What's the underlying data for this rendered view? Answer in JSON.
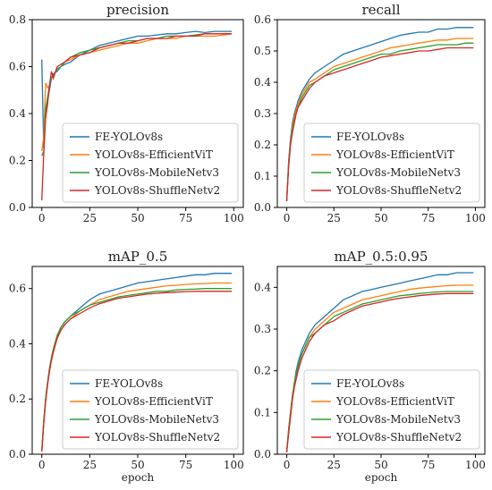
{
  "chart_data": [
    {
      "type": "line",
      "title": "precision",
      "xlabel": "",
      "ylabel": "",
      "xlim": [
        -5,
        105
      ],
      "ylim": [
        0,
        0.8
      ],
      "xticks": [
        0,
        25,
        50,
        75,
        100
      ],
      "yticks": [
        0.0,
        0.2,
        0.4,
        0.6,
        0.8
      ],
      "tick_decimals": 1,
      "legend_position": "lower-right",
      "grid": false,
      "series": [
        {
          "name": "FE-YOLOv8s",
          "color": "#1f77b4",
          "x": [
            0,
            1,
            2,
            3,
            4,
            5,
            6,
            8,
            10,
            12,
            15,
            20,
            25,
            30,
            35,
            40,
            45,
            50,
            55,
            60,
            65,
            70,
            75,
            80,
            85,
            90,
            95,
            99
          ],
          "y": [
            0.63,
            0.25,
            0.4,
            0.46,
            0.5,
            0.55,
            0.57,
            0.58,
            0.6,
            0.61,
            0.62,
            0.65,
            0.67,
            0.69,
            0.7,
            0.71,
            0.72,
            0.73,
            0.73,
            0.735,
            0.74,
            0.74,
            0.745,
            0.75,
            0.745,
            0.75,
            0.75,
            0.75
          ]
        },
        {
          "name": "YOLOv8s-EfficientViT",
          "color": "#ff7f0e",
          "x": [
            0,
            1,
            2,
            3,
            4,
            5,
            6,
            8,
            10,
            12,
            15,
            20,
            25,
            30,
            35,
            40,
            45,
            50,
            55,
            60,
            65,
            70,
            75,
            80,
            85,
            90,
            95,
            99
          ],
          "y": [
            0.24,
            0.3,
            0.53,
            0.51,
            0.52,
            0.55,
            0.56,
            0.59,
            0.6,
            0.62,
            0.63,
            0.65,
            0.66,
            0.67,
            0.68,
            0.69,
            0.7,
            0.7,
            0.71,
            0.72,
            0.72,
            0.72,
            0.73,
            0.73,
            0.73,
            0.73,
            0.735,
            0.74
          ]
        },
        {
          "name": "YOLOv8s-MobileNetv3",
          "color": "#2ca02c",
          "x": [
            0,
            1,
            2,
            3,
            4,
            5,
            6,
            8,
            10,
            12,
            15,
            20,
            25,
            30,
            35,
            40,
            45,
            50,
            55,
            60,
            65,
            70,
            75,
            80,
            85,
            90,
            95,
            99
          ],
          "y": [
            0.22,
            0.24,
            0.42,
            0.47,
            0.52,
            0.55,
            0.56,
            0.59,
            0.6,
            0.62,
            0.64,
            0.66,
            0.67,
            0.68,
            0.69,
            0.7,
            0.71,
            0.71,
            0.72,
            0.72,
            0.73,
            0.73,
            0.73,
            0.735,
            0.74,
            0.74,
            0.74,
            0.74
          ]
        },
        {
          "name": "YOLOv8s-ShuffleNetv2",
          "color": "#d62728",
          "x": [
            0,
            1,
            2,
            3,
            4,
            5,
            6,
            8,
            10,
            12,
            15,
            20,
            25,
            30,
            35,
            40,
            45,
            50,
            55,
            60,
            65,
            70,
            75,
            80,
            85,
            90,
            95,
            99
          ],
          "y": [
            0.03,
            0.23,
            0.38,
            0.44,
            0.52,
            0.58,
            0.55,
            0.6,
            0.61,
            0.62,
            0.64,
            0.65,
            0.66,
            0.68,
            0.69,
            0.7,
            0.7,
            0.71,
            0.72,
            0.72,
            0.72,
            0.73,
            0.73,
            0.73,
            0.74,
            0.74,
            0.74,
            0.74
          ]
        }
      ]
    },
    {
      "type": "line",
      "title": "recall",
      "xlabel": "",
      "ylabel": "",
      "xlim": [
        -5,
        105
      ],
      "ylim": [
        0,
        0.6
      ],
      "xticks": [
        0,
        25,
        50,
        75,
        100
      ],
      "yticks": [
        0.0,
        0.1,
        0.2,
        0.3,
        0.4,
        0.5,
        0.6
      ],
      "tick_decimals": 1,
      "legend_position": "lower-right",
      "grid": false,
      "series": [
        {
          "name": "FE-YOLOv8s",
          "color": "#1f77b4",
          "x": [
            0,
            1,
            2,
            3,
            4,
            5,
            6,
            8,
            10,
            12,
            15,
            20,
            25,
            30,
            35,
            40,
            45,
            50,
            55,
            60,
            65,
            70,
            75,
            80,
            85,
            90,
            95,
            99
          ],
          "y": [
            0.02,
            0.15,
            0.22,
            0.27,
            0.3,
            0.32,
            0.34,
            0.37,
            0.39,
            0.41,
            0.43,
            0.45,
            0.47,
            0.49,
            0.5,
            0.51,
            0.52,
            0.53,
            0.54,
            0.55,
            0.555,
            0.56,
            0.56,
            0.57,
            0.57,
            0.575,
            0.575,
            0.575
          ]
        },
        {
          "name": "YOLOv8s-EfficientViT",
          "color": "#ff7f0e",
          "x": [
            0,
            1,
            2,
            3,
            4,
            5,
            6,
            8,
            10,
            12,
            15,
            20,
            25,
            30,
            35,
            40,
            45,
            50,
            55,
            60,
            65,
            70,
            75,
            80,
            85,
            90,
            95,
            99
          ],
          "y": [
            0.02,
            0.14,
            0.21,
            0.26,
            0.29,
            0.31,
            0.33,
            0.36,
            0.38,
            0.4,
            0.41,
            0.43,
            0.45,
            0.46,
            0.47,
            0.48,
            0.49,
            0.5,
            0.51,
            0.515,
            0.52,
            0.525,
            0.53,
            0.535,
            0.535,
            0.54,
            0.54,
            0.54
          ]
        },
        {
          "name": "YOLOv8s-MobileNetv3",
          "color": "#2ca02c",
          "x": [
            0,
            1,
            2,
            3,
            4,
            5,
            6,
            8,
            10,
            12,
            15,
            20,
            25,
            30,
            35,
            40,
            45,
            50,
            55,
            60,
            65,
            70,
            75,
            80,
            85,
            90,
            95,
            99
          ],
          "y": [
            0.02,
            0.14,
            0.21,
            0.25,
            0.28,
            0.3,
            0.32,
            0.35,
            0.37,
            0.39,
            0.4,
            0.42,
            0.44,
            0.45,
            0.46,
            0.47,
            0.48,
            0.49,
            0.49,
            0.5,
            0.505,
            0.51,
            0.515,
            0.52,
            0.52,
            0.52,
            0.525,
            0.525
          ]
        },
        {
          "name": "YOLOv8s-ShuffleNetv2",
          "color": "#d62728",
          "x": [
            0,
            1,
            2,
            3,
            4,
            5,
            6,
            8,
            10,
            12,
            15,
            20,
            25,
            30,
            35,
            40,
            45,
            50,
            55,
            60,
            65,
            70,
            75,
            80,
            85,
            90,
            95,
            99
          ],
          "y": [
            0.02,
            0.13,
            0.2,
            0.24,
            0.27,
            0.3,
            0.32,
            0.34,
            0.36,
            0.38,
            0.4,
            0.42,
            0.43,
            0.44,
            0.45,
            0.46,
            0.47,
            0.48,
            0.485,
            0.49,
            0.495,
            0.5,
            0.5,
            0.505,
            0.51,
            0.51,
            0.51,
            0.51
          ]
        }
      ]
    },
    {
      "type": "line",
      "title": "mAP_0.5",
      "xlabel": "epoch",
      "ylabel": "",
      "xlim": [
        -5,
        105
      ],
      "ylim": [
        0,
        0.68
      ],
      "xticks": [
        0,
        25,
        50,
        75,
        100
      ],
      "yticks": [
        0.0,
        0.2,
        0.4,
        0.6
      ],
      "tick_decimals": 1,
      "legend_position": "lower-right",
      "grid": false,
      "series": [
        {
          "name": "FE-YOLOv8s",
          "color": "#1f77b4",
          "x": [
            0,
            1,
            2,
            3,
            4,
            5,
            6,
            8,
            10,
            12,
            15,
            20,
            25,
            30,
            35,
            40,
            45,
            50,
            55,
            60,
            65,
            70,
            75,
            80,
            85,
            90,
            95,
            99
          ],
          "y": [
            0.01,
            0.12,
            0.2,
            0.26,
            0.31,
            0.35,
            0.38,
            0.43,
            0.46,
            0.48,
            0.5,
            0.53,
            0.56,
            0.58,
            0.59,
            0.6,
            0.61,
            0.62,
            0.625,
            0.63,
            0.635,
            0.64,
            0.645,
            0.65,
            0.65,
            0.655,
            0.655,
            0.655
          ]
        },
        {
          "name": "YOLOv8s-EfficientViT",
          "color": "#ff7f0e",
          "x": [
            0,
            1,
            2,
            3,
            4,
            5,
            6,
            8,
            10,
            12,
            15,
            20,
            25,
            30,
            35,
            40,
            45,
            50,
            55,
            60,
            65,
            70,
            75,
            80,
            85,
            90,
            95,
            99
          ],
          "y": [
            0.01,
            0.12,
            0.2,
            0.26,
            0.3,
            0.34,
            0.37,
            0.42,
            0.45,
            0.47,
            0.49,
            0.52,
            0.54,
            0.56,
            0.57,
            0.58,
            0.59,
            0.595,
            0.6,
            0.605,
            0.61,
            0.612,
            0.615,
            0.617,
            0.618,
            0.62,
            0.62,
            0.62
          ]
        },
        {
          "name": "YOLOv8s-MobileNetv3",
          "color": "#2ca02c",
          "x": [
            0,
            1,
            2,
            3,
            4,
            5,
            6,
            8,
            10,
            12,
            15,
            20,
            25,
            30,
            35,
            40,
            45,
            50,
            55,
            60,
            65,
            70,
            75,
            80,
            85,
            90,
            95,
            99
          ],
          "y": [
            0.01,
            0.12,
            0.2,
            0.26,
            0.31,
            0.35,
            0.38,
            0.43,
            0.46,
            0.48,
            0.5,
            0.52,
            0.54,
            0.55,
            0.56,
            0.57,
            0.575,
            0.58,
            0.585,
            0.59,
            0.59,
            0.595,
            0.597,
            0.598,
            0.6,
            0.6,
            0.6,
            0.6
          ]
        },
        {
          "name": "YOLOv8s-ShuffleNetv2",
          "color": "#d62728",
          "x": [
            0,
            1,
            2,
            3,
            4,
            5,
            6,
            8,
            10,
            12,
            15,
            20,
            25,
            30,
            35,
            40,
            45,
            50,
            55,
            60,
            65,
            70,
            75,
            80,
            85,
            90,
            95,
            99
          ],
          "y": [
            0.01,
            0.11,
            0.19,
            0.25,
            0.3,
            0.34,
            0.37,
            0.42,
            0.45,
            0.47,
            0.49,
            0.51,
            0.53,
            0.545,
            0.555,
            0.565,
            0.57,
            0.575,
            0.58,
            0.583,
            0.585,
            0.587,
            0.589,
            0.59,
            0.59,
            0.59,
            0.59,
            0.59
          ]
        }
      ]
    },
    {
      "type": "line",
      "title": "mAP_0.5:0.95",
      "xlabel": "epoch",
      "ylabel": "",
      "xlim": [
        -5,
        105
      ],
      "ylim": [
        0,
        0.45
      ],
      "xticks": [
        0,
        25,
        50,
        75,
        100
      ],
      "yticks": [
        0.0,
        0.1,
        0.2,
        0.3,
        0.4
      ],
      "tick_decimals": 1,
      "legend_position": "lower-right",
      "grid": false,
      "series": [
        {
          "name": "FE-YOLOv8s",
          "color": "#1f77b4",
          "x": [
            0,
            1,
            2,
            3,
            4,
            5,
            6,
            8,
            10,
            12,
            15,
            20,
            25,
            30,
            35,
            40,
            45,
            50,
            55,
            60,
            65,
            70,
            75,
            80,
            85,
            90,
            95,
            99
          ],
          "y": [
            0.005,
            0.06,
            0.1,
            0.14,
            0.17,
            0.2,
            0.22,
            0.25,
            0.27,
            0.29,
            0.31,
            0.33,
            0.35,
            0.37,
            0.38,
            0.39,
            0.395,
            0.4,
            0.405,
            0.41,
            0.415,
            0.42,
            0.425,
            0.43,
            0.43,
            0.435,
            0.435,
            0.435
          ]
        },
        {
          "name": "YOLOv8s-EfficientViT",
          "color": "#ff7f0e",
          "x": [
            0,
            1,
            2,
            3,
            4,
            5,
            6,
            8,
            10,
            12,
            15,
            20,
            25,
            30,
            35,
            40,
            45,
            50,
            55,
            60,
            65,
            70,
            75,
            80,
            85,
            90,
            95,
            99
          ],
          "y": [
            0.005,
            0.06,
            0.1,
            0.14,
            0.17,
            0.19,
            0.21,
            0.24,
            0.26,
            0.28,
            0.3,
            0.32,
            0.34,
            0.35,
            0.36,
            0.37,
            0.375,
            0.38,
            0.385,
            0.39,
            0.395,
            0.398,
            0.4,
            0.402,
            0.404,
            0.405,
            0.405,
            0.405
          ]
        },
        {
          "name": "YOLOv8s-MobileNetv3",
          "color": "#2ca02c",
          "x": [
            0,
            1,
            2,
            3,
            4,
            5,
            6,
            8,
            10,
            12,
            15,
            20,
            25,
            30,
            35,
            40,
            45,
            50,
            55,
            60,
            65,
            70,
            75,
            80,
            85,
            90,
            95,
            99
          ],
          "y": [
            0.005,
            0.06,
            0.1,
            0.14,
            0.17,
            0.19,
            0.21,
            0.24,
            0.26,
            0.28,
            0.29,
            0.31,
            0.33,
            0.34,
            0.35,
            0.36,
            0.365,
            0.37,
            0.375,
            0.38,
            0.382,
            0.385,
            0.387,
            0.389,
            0.39,
            0.39,
            0.39,
            0.39
          ]
        },
        {
          "name": "YOLOv8s-ShuffleNetv2",
          "color": "#d62728",
          "x": [
            0,
            1,
            2,
            3,
            4,
            5,
            6,
            8,
            10,
            12,
            15,
            20,
            25,
            30,
            35,
            40,
            45,
            50,
            55,
            60,
            65,
            70,
            75,
            80,
            85,
            90,
            95,
            99
          ],
          "y": [
            0.005,
            0.05,
            0.09,
            0.13,
            0.16,
            0.18,
            0.2,
            0.23,
            0.25,
            0.27,
            0.29,
            0.31,
            0.32,
            0.335,
            0.345,
            0.355,
            0.36,
            0.365,
            0.37,
            0.374,
            0.377,
            0.38,
            0.382,
            0.384,
            0.385,
            0.385,
            0.385,
            0.385
          ]
        }
      ]
    }
  ]
}
